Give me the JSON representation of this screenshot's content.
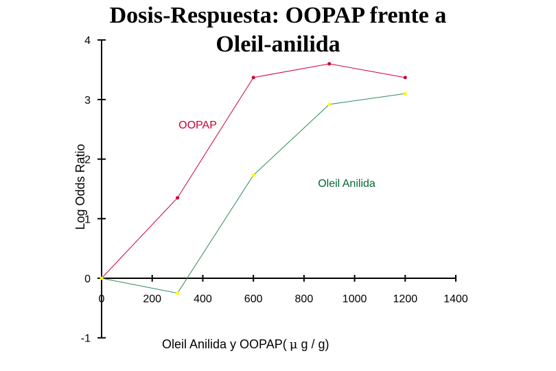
{
  "chart_data": {
    "type": "line",
    "title_line1": "Dosis-Respuesta: OOPAP frente a",
    "title_line2": "Oleil-anilida",
    "xlabel_prefix": "Oleil Anilida  y OOPAP(",
    "xlabel_mu": "μ",
    "xlabel_suffix": " g / g)",
    "ylabel": "Log Odds Ratio",
    "xlim": [
      0,
      1400
    ],
    "ylim": [
      -1,
      4
    ],
    "xticks": [
      0,
      200,
      400,
      600,
      800,
      1000,
      1200,
      1400
    ],
    "xtick_labels": [
      "0",
      "200",
      "400",
      "600",
      "800",
      "1000",
      "1200",
      "1400"
    ],
    "yticks": [
      -1,
      0,
      1,
      2,
      3,
      4
    ],
    "ytick_labels": [
      "-1",
      "0",
      "1",
      "2",
      "3",
      "4"
    ],
    "grid": false,
    "series": [
      {
        "name": "OOPAP",
        "color": "#cc0033",
        "x": [
          0,
          300,
          600,
          900,
          1200
        ],
        "y": [
          0,
          1.35,
          3.37,
          3.6,
          3.37
        ]
      },
      {
        "name": "Oleil Anilida",
        "color": "#ffff00",
        "line_color": "#2e8b57",
        "label_color": "#006633",
        "x": [
          0,
          300,
          600,
          900,
          1200
        ],
        "y": [
          0,
          -0.25,
          1.73,
          2.92,
          3.1
        ]
      }
    ]
  }
}
